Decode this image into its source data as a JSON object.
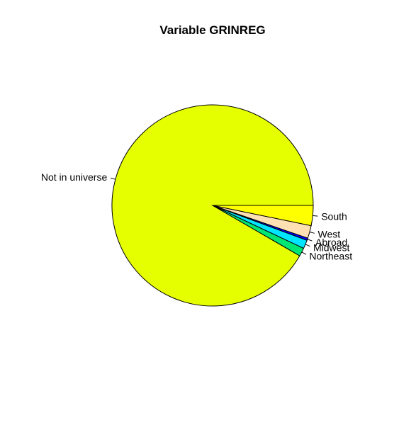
{
  "chart_data": {
    "type": "pie",
    "title": "Variable GRINREG",
    "labels": [
      "Not in universe",
      "Northeast",
      "Midwest",
      "Abroad",
      "West",
      "South"
    ],
    "values": [
      0.9165,
      0.0134,
      0.0137,
      0.0037,
      0.0204,
      0.0323
    ],
    "colors": [
      "#E6FF00",
      "#00E673",
      "#00E5FF",
      "#0000FF",
      "#FFE0B3",
      "#FFFF00"
    ],
    "start_angle_deg": 0,
    "direction": "counterclockwise",
    "border_color": "#000000",
    "legend": "none",
    "labels_position": "outside with leader ticks"
  }
}
